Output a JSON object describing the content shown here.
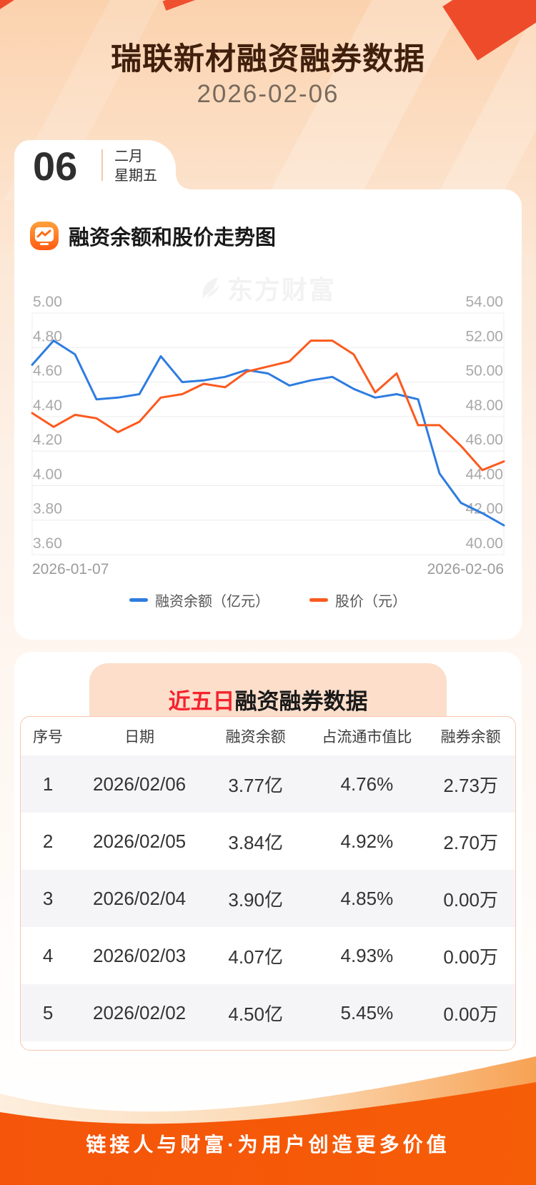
{
  "header": {
    "title": "瑞联新材融资融券数据",
    "date": "2026-02-06"
  },
  "date_card": {
    "day": "06",
    "month": "二月",
    "weekday": "星期五"
  },
  "chart_section": {
    "title": "融资余额和股价走势图"
  },
  "watermark": "东方财富",
  "chart_data": {
    "type": "line",
    "x_labels": [
      "2026-01-07",
      "2026-02-06"
    ],
    "grid": true,
    "legend_position": "bottom",
    "left_axis": {
      "ticks": [
        "5.00",
        "4.80",
        "4.60",
        "4.40",
        "4.20",
        "4.00",
        "3.80",
        "3.60"
      ],
      "min": 3.6,
      "max": 5.0
    },
    "right_axis": {
      "ticks": [
        "54.00",
        "52.00",
        "50.00",
        "48.00",
        "46.00",
        "44.00",
        "42.00",
        "40.00"
      ],
      "min": 40,
      "max": 54
    },
    "series": [
      {
        "name": "融资余额（亿元）",
        "axis": "left",
        "color": "#2e7ce0",
        "values": [
          4.7,
          4.84,
          4.76,
          4.5,
          4.51,
          4.53,
          4.75,
          4.6,
          4.61,
          4.63,
          4.67,
          4.65,
          4.58,
          4.61,
          4.63,
          4.56,
          4.51,
          4.53,
          4.5,
          4.07,
          3.9,
          3.84,
          3.77
        ]
      },
      {
        "name": "股价（元）",
        "axis": "right",
        "color": "#fb5a1f",
        "values": [
          48.2,
          47.4,
          48.1,
          47.9,
          47.1,
          47.7,
          49.1,
          49.3,
          49.9,
          49.7,
          50.6,
          50.9,
          51.2,
          52.4,
          52.4,
          51.6,
          49.4,
          50.5,
          47.5,
          47.5,
          46.3,
          44.9,
          45.4
        ]
      }
    ]
  },
  "table_section": {
    "title_highlight": "近五日",
    "title_rest": "融资融券数据",
    "columns": [
      "序号",
      "日期",
      "融资余额",
      "占流通市值比",
      "融券余额"
    ],
    "rows": [
      [
        "1",
        "2026/02/06",
        "3.77亿",
        "4.76%",
        "2.73万"
      ],
      [
        "2",
        "2026/02/05",
        "3.84亿",
        "4.92%",
        "2.70万"
      ],
      [
        "3",
        "2026/02/04",
        "3.90亿",
        "4.85%",
        "0.00万"
      ],
      [
        "4",
        "2026/02/03",
        "4.07亿",
        "4.93%",
        "0.00万"
      ],
      [
        "5",
        "2026/02/02",
        "4.50亿",
        "5.45%",
        "0.00万"
      ]
    ]
  },
  "footer": {
    "slogan": "链接人与财富·为用户创造更多价值"
  },
  "colors": {
    "accent_orange": "#f45909",
    "line_blue": "#2e7ce0",
    "line_orange": "#fb5a1f",
    "title_brown": "#40200d",
    "highlight_red": "#f5222d"
  }
}
